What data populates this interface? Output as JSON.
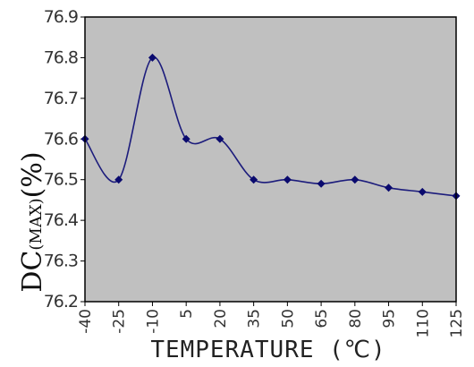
{
  "chart_data": {
    "type": "line",
    "title": "",
    "xlabel": "TEMPERATURE (℃)",
    "ylabel": {
      "main": "DC",
      "subscript": "(MAX)",
      "suffix": "(%)"
    },
    "x": [
      -40,
      -25,
      -10,
      5,
      20,
      35,
      50,
      65,
      80,
      95,
      110,
      125
    ],
    "x_tick_labels": [
      "-40",
      "-25",
      "-10",
      "5",
      "20",
      "35",
      "50",
      "65",
      "80",
      "95",
      "110",
      "125"
    ],
    "series": [
      {
        "values": [
          76.6,
          76.5,
          76.8,
          76.6,
          76.6,
          76.5,
          76.5,
          76.49,
          76.5,
          76.48,
          76.47,
          76.46
        ]
      }
    ],
    "ylim": [
      76.2,
      76.9
    ],
    "y_tick_labels": [
      "76.2",
      "76.3",
      "76.4",
      "76.5",
      "76.6",
      "76.7",
      "76.8",
      "76.9"
    ],
    "grid": false,
    "legend": "none",
    "colors": {
      "plot_background": "#c0c0c0",
      "line": "#1c1c7c",
      "marker": "#0a0a6e",
      "frame": "#000000"
    }
  }
}
